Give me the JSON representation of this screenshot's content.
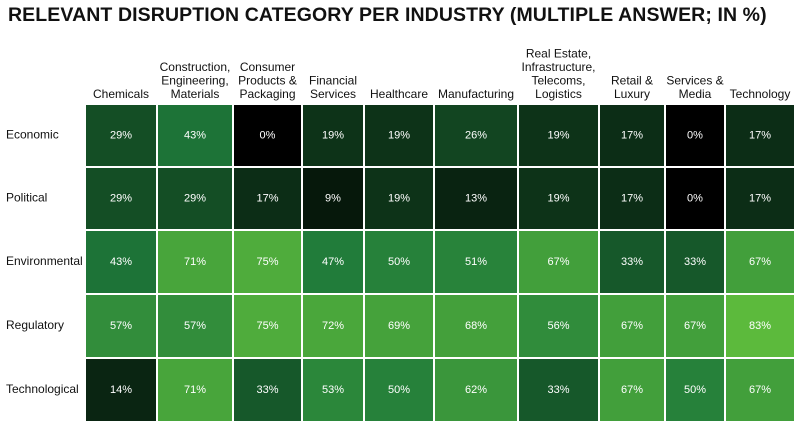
{
  "chart_data": {
    "type": "heatmap",
    "title": "RELEVANT DISRUPTION CATEGORY PER INDUSTRY (MULTIPLE ANSWER; IN %)",
    "columns": [
      {
        "lines": [
          "Chemicals"
        ]
      },
      {
        "lines": [
          "Construction,",
          "Engineering,",
          "Materials"
        ]
      },
      {
        "lines": [
          "Consumer",
          "Products &",
          "Packaging"
        ]
      },
      {
        "lines": [
          "Financial",
          "Services"
        ]
      },
      {
        "lines": [
          "Healthcare"
        ]
      },
      {
        "lines": [
          "Manufacturing"
        ]
      },
      {
        "lines": [
          "Real Estate,",
          "Infrastructure,",
          "Telecoms,",
          "Logistics"
        ]
      },
      {
        "lines": [
          "Retail &",
          "Luxury"
        ]
      },
      {
        "lines": [
          "Services &",
          "Media"
        ]
      },
      {
        "lines": [
          "Technology"
        ]
      }
    ],
    "rows": [
      "Economic",
      "Political",
      "Environmental",
      "Regulatory",
      "Technological"
    ],
    "values": [
      [
        29,
        43,
        0,
        19,
        19,
        26,
        19,
        17,
        0,
        17
      ],
      [
        29,
        29,
        17,
        9,
        19,
        13,
        19,
        17,
        0,
        17
      ],
      [
        43,
        71,
        75,
        47,
        50,
        51,
        67,
        33,
        33,
        67
      ],
      [
        57,
        57,
        75,
        72,
        69,
        68,
        56,
        67,
        67,
        83
      ],
      [
        14,
        71,
        33,
        53,
        50,
        62,
        33,
        67,
        50,
        67
      ]
    ],
    "value_suffix": "%",
    "color_scale": {
      "low": "#000000",
      "mid": "#1f7a3a",
      "high": "#5cba3c"
    },
    "label_color": "#ffffff",
    "grid_color": "#ffffff"
  }
}
